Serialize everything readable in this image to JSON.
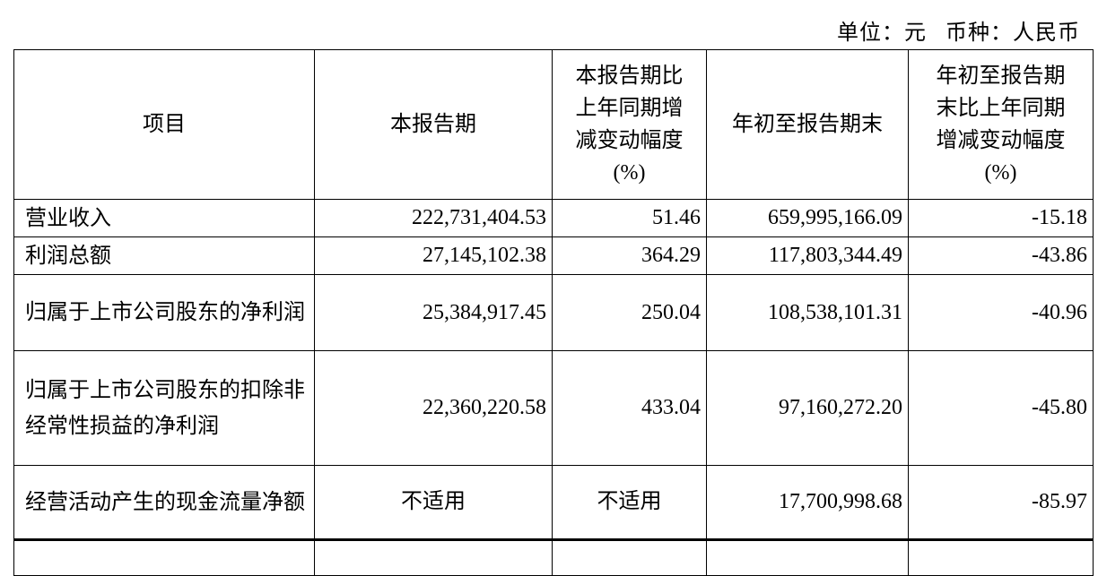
{
  "unit_line": "单位：元   币种：人民币",
  "headers": [
    "项目",
    "本报告期",
    "本报告期比上年同期增减变动幅度(%)",
    "年初至报告期末",
    "年初至报告期末比上年同期增减变动幅度(%)"
  ],
  "header_lines": {
    "col3": [
      "本报告期比",
      "上年同期增",
      "减变动幅度",
      "(%)"
    ],
    "col5": [
      "年初至报告期",
      "末比上年同期",
      "增减变动幅度",
      "(%)"
    ]
  },
  "rows": [
    {
      "item": "营业收入",
      "current": "222,731,404.53",
      "current_change": "51.46",
      "ytd": "659,995,166.09",
      "ytd_change": "-15.18"
    },
    {
      "item": "利润总额",
      "current": "27,145,102.38",
      "current_change": "364.29",
      "ytd": "117,803,344.49",
      "ytd_change": "-43.86"
    },
    {
      "item": "归属于上市公司股东的净利润",
      "current": "25,384,917.45",
      "current_change": "250.04",
      "ytd": "108,538,101.31",
      "ytd_change": "-40.96"
    },
    {
      "item": "归属于上市公司股东的扣除非经常性损益的净利润",
      "current": "22,360,220.58",
      "current_change": "433.04",
      "ytd": "97,160,272.20",
      "ytd_change": "-45.80"
    },
    {
      "item": "经营活动产生的现金流量净额",
      "current": "不适用",
      "current_change": "不适用",
      "ytd": "17,700,998.68",
      "ytd_change": "-85.97"
    }
  ]
}
